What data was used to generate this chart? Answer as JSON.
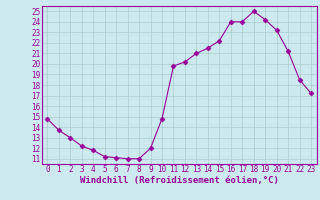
{
  "x": [
    0,
    1,
    2,
    3,
    4,
    5,
    6,
    7,
    8,
    9,
    10,
    11,
    12,
    13,
    14,
    15,
    16,
    17,
    18,
    19,
    20,
    21,
    22,
    23
  ],
  "y": [
    14.8,
    13.7,
    13.0,
    12.2,
    11.8,
    11.2,
    11.1,
    11.0,
    11.0,
    12.0,
    14.8,
    19.8,
    20.2,
    21.0,
    21.5,
    22.2,
    24.0,
    24.0,
    25.0,
    24.2,
    23.2,
    21.2,
    18.5,
    17.2
  ],
  "xlim": [
    -0.5,
    23.5
  ],
  "ylim": [
    10.5,
    25.5
  ],
  "yticks": [
    11,
    12,
    13,
    14,
    15,
    16,
    17,
    18,
    19,
    20,
    21,
    22,
    23,
    24,
    25
  ],
  "xticks": [
    0,
    1,
    2,
    3,
    4,
    5,
    6,
    7,
    8,
    9,
    10,
    11,
    12,
    13,
    14,
    15,
    16,
    17,
    18,
    19,
    20,
    21,
    22,
    23
  ],
  "xlabel": "Windchill (Refroidissement éolien,°C)",
  "line_color": "#990099",
  "marker": "D",
  "marker_size": 2.5,
  "bg_color": "#cde9f0",
  "grid_color": "#aacccc",
  "axis_label_fontsize": 6.5,
  "tick_fontsize": 5.5
}
